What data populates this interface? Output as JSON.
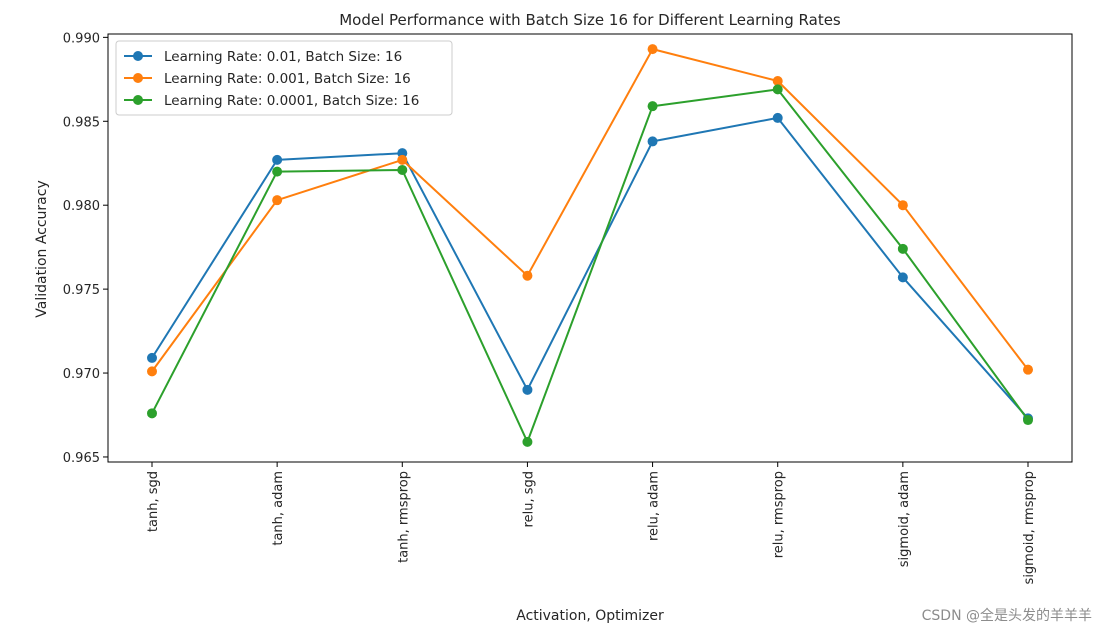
{
  "chart_data": {
    "type": "line",
    "title": "Model Performance with Batch Size 16 for Different Learning Rates",
    "xlabel": "Activation, Optimizer",
    "ylabel": "Validation Accuracy",
    "categories": [
      "tanh, sgd",
      "tanh, adam",
      "tanh, rmsprop",
      "relu, sgd",
      "relu, adam",
      "relu, rmsprop",
      "sigmoid, adam",
      "sigmoid, rmsprop"
    ],
    "ylim": [
      0.9647,
      0.9902
    ],
    "yticks": [
      0.965,
      0.97,
      0.975,
      0.98,
      0.985,
      0.99
    ],
    "ytick_labels": [
      "0.965",
      "0.970",
      "0.975",
      "0.980",
      "0.985",
      "0.990"
    ],
    "grid": false,
    "legend_position": "top-left",
    "series": [
      {
        "name": "Learning Rate: 0.01, Batch Size: 16",
        "color": "#1f77b4",
        "values": [
          0.9709,
          0.9827,
          0.9831,
          0.969,
          0.9838,
          0.9852,
          0.9757,
          0.9673
        ]
      },
      {
        "name": "Learning Rate: 0.001, Batch Size: 16",
        "color": "#ff7f0e",
        "values": [
          0.9701,
          0.9803,
          0.9827,
          0.9758,
          0.9893,
          0.9874,
          0.98,
          0.9702
        ]
      },
      {
        "name": "Learning Rate: 0.0001, Batch Size: 16",
        "color": "#2ca02c",
        "values": [
          0.9676,
          0.982,
          0.9821,
          0.9659,
          0.9859,
          0.9869,
          0.9774,
          0.9672
        ]
      }
    ]
  },
  "watermark": "CSDN @全是头发的羊羊羊"
}
